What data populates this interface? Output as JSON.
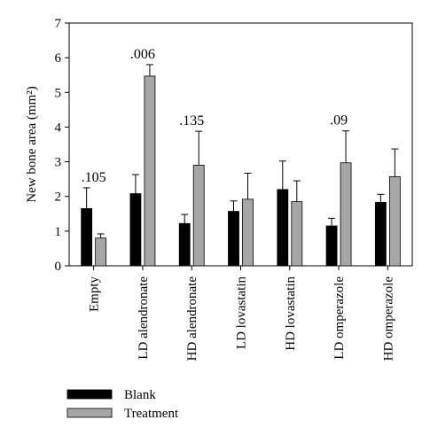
{
  "chart_data": {
    "type": "bar",
    "ylabel": "New bone area (mm²)",
    "ylim": [
      0,
      7
    ],
    "yticks": [
      0,
      1,
      2,
      3,
      4,
      5,
      6,
      7
    ],
    "categories": [
      "Empty",
      "LD alendronate",
      "HD alendronate",
      "LD lovastatin",
      "HD lovastatin",
      "LD omperazole",
      "HD omperazole"
    ],
    "series": [
      {
        "name": "Blank",
        "color": "#000000",
        "values": [
          1.65,
          2.08,
          1.22,
          1.57,
          2.2,
          1.15,
          1.83
        ],
        "errors": [
          0.6,
          0.55,
          0.26,
          0.3,
          0.82,
          0.22,
          0.23
        ]
      },
      {
        "name": "Treatment",
        "color": "#a6a6a6",
        "values": [
          0.8,
          5.47,
          2.9,
          1.92,
          1.85,
          2.97,
          2.57
        ],
        "errors": [
          0.12,
          0.33,
          0.98,
          0.75,
          0.6,
          0.92,
          0.8
        ]
      }
    ],
    "annotations": [
      {
        "category": "Empty",
        "text": ".105"
      },
      {
        "category": "LD alendronate",
        "text": ".006"
      },
      {
        "category": "HD alendronate",
        "text": ".135"
      },
      {
        "category": "LD omperazole",
        "text": ".09"
      }
    ],
    "legend": "bottom-left",
    "grid": false
  }
}
